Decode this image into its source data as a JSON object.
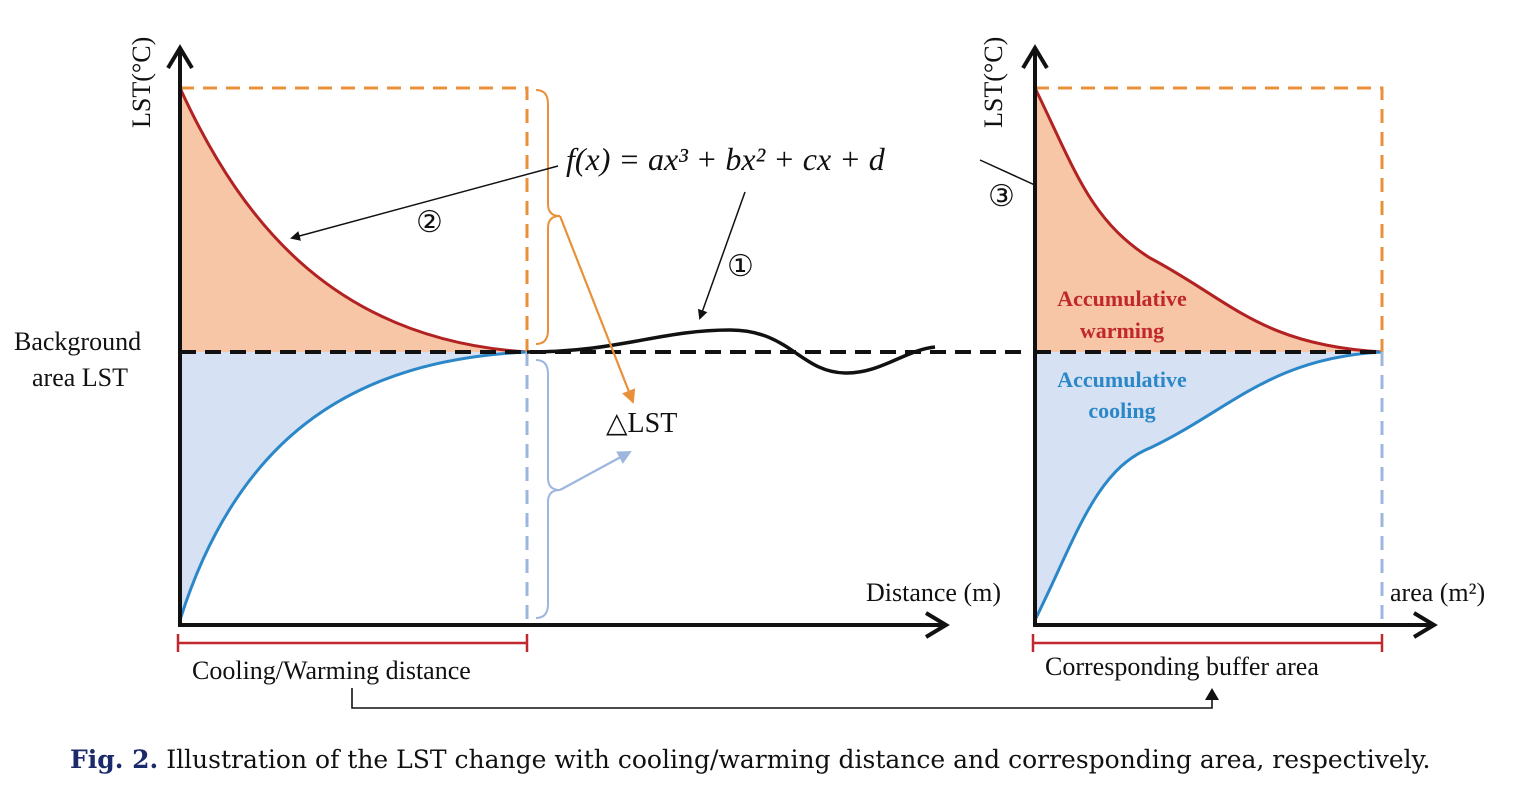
{
  "left_panel": {
    "y_axis_label": "LST(°C)",
    "background_label_line1": "Background",
    "background_label_line2": "area LST",
    "x_axis_label": "Distance (m)",
    "bracket_label": "Cooling/Warming distance",
    "delta_label": "△LST"
  },
  "formula": "f(x) = ax³ + bx² + cx + d",
  "markers": {
    "one": "①",
    "two": "②",
    "three": "③"
  },
  "right_panel": {
    "y_axis_label": "LST(°C)",
    "x_axis_label": "area (m²)",
    "warming_line1": "Accumulative",
    "warming_line2": "warming",
    "cooling_line1": "Accumulative",
    "cooling_line2": "cooling",
    "bracket_label": "Corresponding buffer area"
  },
  "caption": {
    "label": "Fig. 2.",
    "text": "Illustration of the LST change with cooling/warming distance and corresponding area, respectively."
  },
  "colors": {
    "warming_line": "#b22222",
    "warming_fill": "#f6c6a6",
    "cooling_line": "#2b87c8",
    "cooling_fill": "#d6e2f4",
    "orange_dash": "#e8913a",
    "blue_dash": "#9db6dd",
    "bracket_red": "#c0282d",
    "warming_text": "#c0282d",
    "cooling_text": "#2b87c8"
  }
}
